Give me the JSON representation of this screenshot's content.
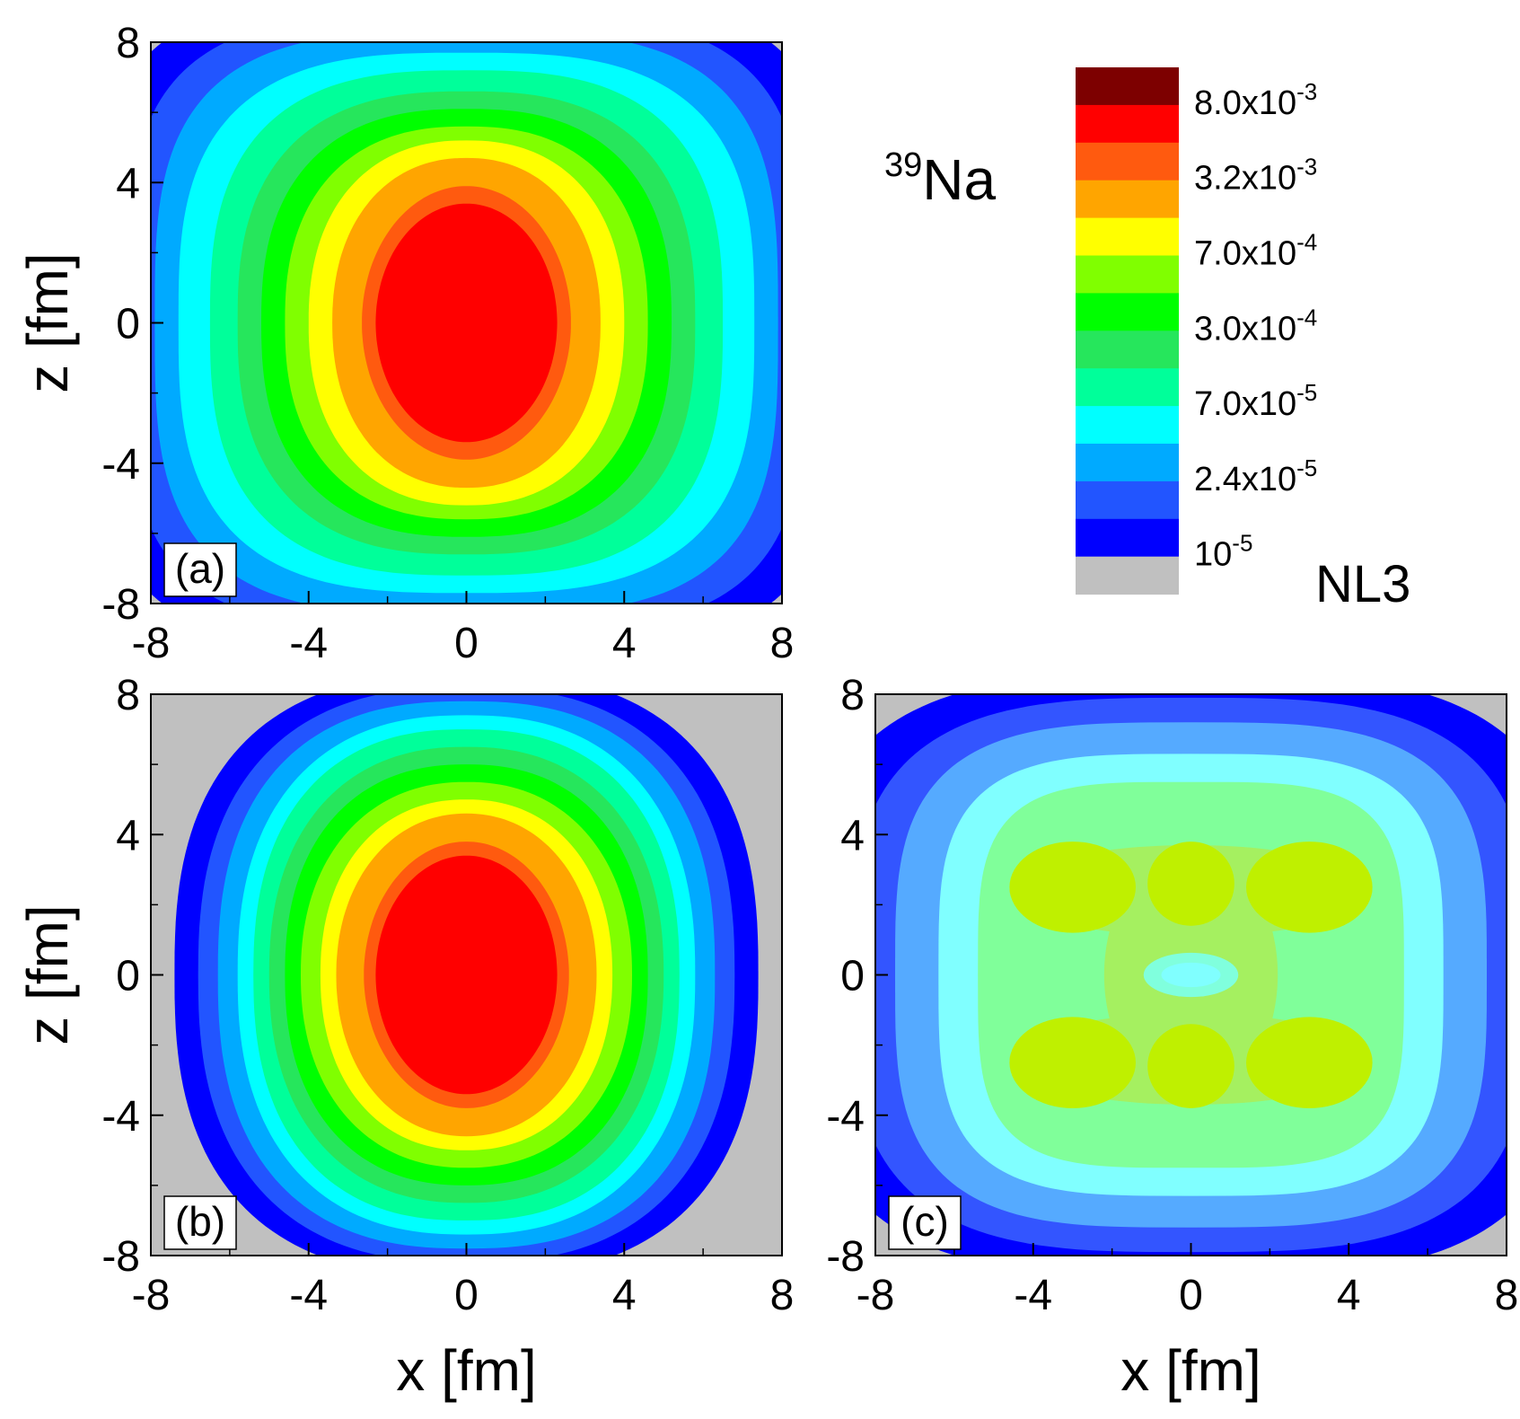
{
  "figure": {
    "nucleus_mass": "39",
    "nucleus_symbol": "Na",
    "model_label": "NL3"
  },
  "chart_data": [
    {
      "type": "heatmap",
      "panel_label": "(a)",
      "xlabel": "",
      "ylabel": "z [fm]",
      "xlim": [
        -8,
        8
      ],
      "ylim": [
        -8,
        8
      ],
      "xticks": [
        "-8",
        "-4",
        "0",
        "4",
        "8"
      ],
      "yticks": [
        "-8",
        "-4",
        "0",
        "4",
        "8"
      ],
      "contours_outer_to_inner": [
        {
          "level": 1e-05,
          "ax": 9.4,
          "az": 9.3,
          "p": 4.0
        },
        {
          "level": 1.5e-05,
          "ax": 8.6,
          "az": 8.8,
          "p": 3.6
        },
        {
          "level": 2.4e-05,
          "ax": 7.9,
          "az": 8.3,
          "p": 3.3
        },
        {
          "level": 4e-05,
          "ax": 7.3,
          "az": 7.7,
          "p": 3.0
        },
        {
          "level": 7e-05,
          "ax": 6.5,
          "az": 7.2,
          "p": 2.8
        },
        {
          "level": 0.00015,
          "ax": 5.8,
          "az": 6.6,
          "p": 2.6
        },
        {
          "level": 0.0003,
          "ax": 5.2,
          "az": 6.1,
          "p": 2.5
        },
        {
          "level": 0.00045,
          "ax": 4.6,
          "az": 5.6,
          "p": 2.4
        },
        {
          "level": 0.0007,
          "ax": 4.0,
          "az": 5.2,
          "p": 2.3
        },
        {
          "level": 0.0015,
          "ax": 3.4,
          "az": 4.7,
          "p": 2.2
        },
        {
          "level": 0.0032,
          "ax": 2.65,
          "az": 3.9,
          "p": 2.0
        }
      ]
    },
    {
      "type": "heatmap",
      "panel_label": "(b)",
      "xlabel": "x [fm]",
      "ylabel": "z [fm]",
      "xlim": [
        -8,
        8
      ],
      "ylim": [
        -8,
        8
      ],
      "xticks": [
        "-8",
        "-4",
        "0",
        "4",
        "8"
      ],
      "yticks": [
        "-8",
        "-4",
        "0",
        "4",
        "8"
      ],
      "contours_outer_to_inner": [
        {
          "level": 1e-05,
          "ax": 7.4,
          "az": 8.6,
          "p": 2.6
        },
        {
          "level": 1.5e-05,
          "ax": 6.8,
          "az": 8.2,
          "p": 2.5
        },
        {
          "level": 2.4e-05,
          "ax": 6.3,
          "az": 7.8,
          "p": 2.5
        },
        {
          "level": 4e-05,
          "ax": 5.8,
          "az": 7.4,
          "p": 2.4
        },
        {
          "level": 7e-05,
          "ax": 5.4,
          "az": 7.0,
          "p": 2.4
        },
        {
          "level": 0.00015,
          "ax": 5.0,
          "az": 6.5,
          "p": 2.3
        },
        {
          "level": 0.0003,
          "ax": 4.6,
          "az": 6.0,
          "p": 2.3
        },
        {
          "level": 0.00045,
          "ax": 4.2,
          "az": 5.5,
          "p": 2.2
        },
        {
          "level": 0.0007,
          "ax": 3.7,
          "az": 5.0,
          "p": 2.2
        },
        {
          "level": 0.0015,
          "ax": 3.3,
          "az": 4.6,
          "p": 2.1
        },
        {
          "level": 0.0032,
          "ax": 2.6,
          "az": 3.8,
          "p": 2.0
        }
      ]
    },
    {
      "type": "heatmap",
      "panel_label": "(c)",
      "xlabel": "x [fm]",
      "ylabel": "",
      "xlim": [
        -8,
        8
      ],
      "ylim": [
        -8,
        8
      ],
      "xticks": [
        "-8",
        "-4",
        "0",
        "4",
        "8"
      ],
      "yticks": [
        "-8",
        "-4",
        "0",
        "4",
        "8"
      ],
      "contours_outer_to_inner": [
        {
          "level": 1e-05,
          "ax": 9.8,
          "az": 8.6,
          "p": 3.2
        },
        {
          "level": 1.5e-05,
          "ax": 8.6,
          "az": 7.9,
          "p": 3.2
        },
        {
          "level": 2.4e-05,
          "ax": 7.5,
          "az": 7.2,
          "p": 3.4
        },
        {
          "level": 4e-05,
          "ax": 6.4,
          "az": 6.3,
          "p": 3.6
        },
        {
          "level": 7e-05,
          "ax": 5.4,
          "az": 5.5,
          "p": 3.8
        }
      ],
      "lobes": [
        {
          "level": 0.0003,
          "x": -3.0,
          "z": 2.5,
          "rx": 1.6,
          "rz": 1.3
        },
        {
          "level": 0.0003,
          "x": 0,
          "z": 2.6,
          "rx": 1.1,
          "rz": 1.2
        },
        {
          "level": 0.0003,
          "x": 3.0,
          "z": 2.5,
          "rx": 1.6,
          "rz": 1.3
        },
        {
          "level": 0.0003,
          "x": -3.0,
          "z": -2.5,
          "rx": 1.6,
          "rz": 1.3
        },
        {
          "level": 0.0003,
          "x": 0,
          "z": -2.6,
          "rx": 1.1,
          "rz": 1.2
        },
        {
          "level": 0.0003,
          "x": 3.0,
          "z": -2.5,
          "rx": 1.6,
          "rz": 1.3
        }
      ],
      "center_minimum": {
        "level": 7e-05,
        "x": 0,
        "z": 0,
        "rx": 0.75,
        "rz": 0.35
      }
    }
  ],
  "colorbar": {
    "levels_top_to_bottom": [
      {
        "color": "#7d0000",
        "label": "8.0x10",
        "exp": "-3"
      },
      {
        "color": "#ff0000",
        "label": "",
        "exp": ""
      },
      {
        "color": "#ff5a0f",
        "label": "3.2x10",
        "exp": "-3"
      },
      {
        "color": "#ffa500",
        "label": "",
        "exp": ""
      },
      {
        "color": "#ffff00",
        "label": "7.0x10",
        "exp": "-4"
      },
      {
        "color": "#80ff00",
        "label": "",
        "exp": ""
      },
      {
        "color": "#00ff00",
        "label": "3.0x10",
        "exp": "-4"
      },
      {
        "color": "#26e65c",
        "label": "",
        "exp": ""
      },
      {
        "color": "#00ff9a",
        "label": "7.0x10",
        "exp": "-5"
      },
      {
        "color": "#00ffff",
        "label": "",
        "exp": ""
      },
      {
        "color": "#00aaff",
        "label": "2.4x10",
        "exp": "-5"
      },
      {
        "color": "#2255ff",
        "label": "",
        "exp": ""
      },
      {
        "color": "#0000ff",
        "label": "10",
        "exp": "-5"
      },
      {
        "color": "#c0c0c0",
        "label": "",
        "exp": ""
      }
    ]
  }
}
